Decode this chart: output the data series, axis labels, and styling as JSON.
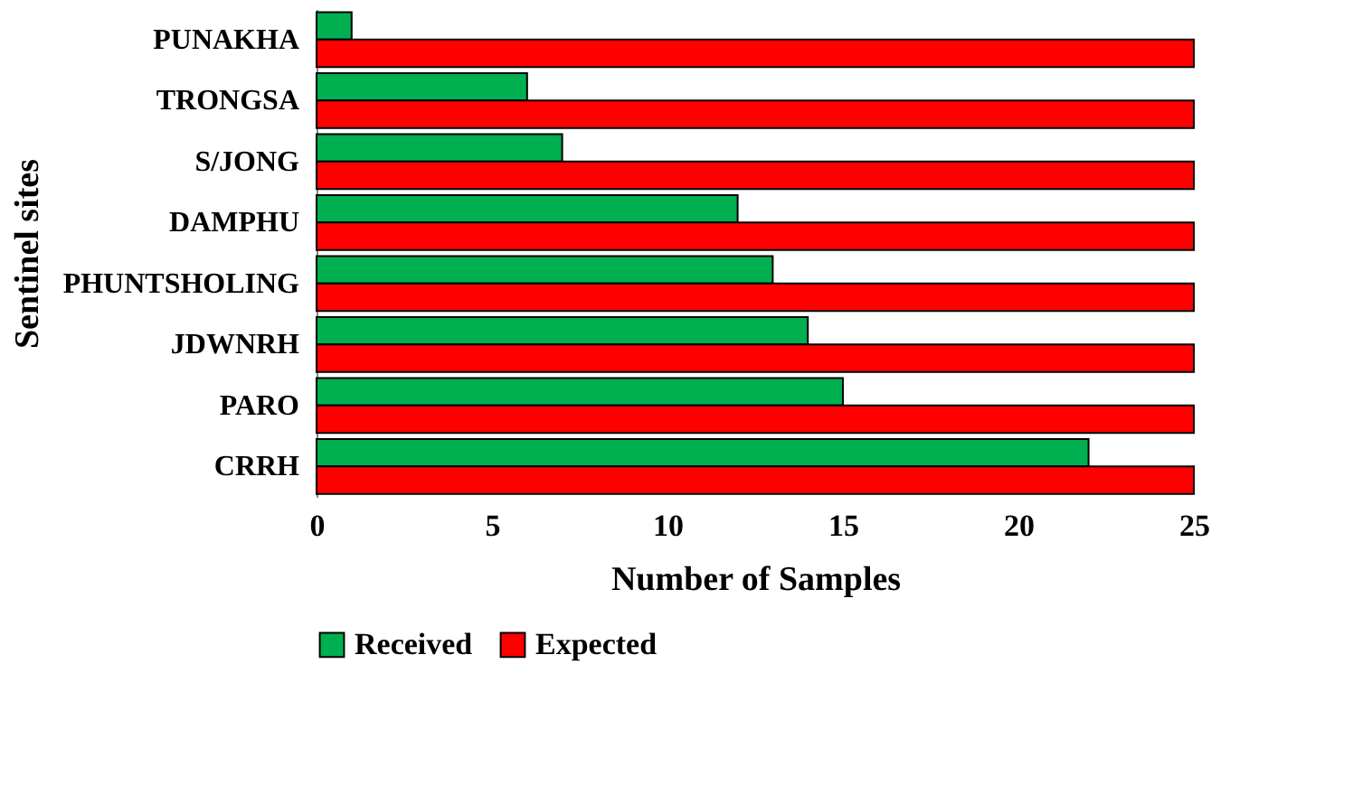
{
  "chart_data": {
    "type": "bar",
    "orientation": "horizontal",
    "xlabel": "Number of Samples",
    "ylabel": "Sentinel sites",
    "categories": [
      "PUNAKHA",
      "TRONGSA",
      "S/JONG",
      "DAMPHU",
      "PHUNTSHOLING",
      "JDWNRH",
      "PARO",
      "CRRH"
    ],
    "series": [
      {
        "name": "Received",
        "color": "#00b050",
        "values": [
          1,
          6,
          7,
          12,
          13,
          14,
          15,
          22
        ]
      },
      {
        "name": "Expected",
        "color": "#ff0000",
        "values": [
          25,
          25,
          25,
          25,
          25,
          25,
          25,
          25
        ]
      }
    ],
    "xlim": [
      0,
      25
    ],
    "xticks": [
      0,
      5,
      10,
      15,
      20,
      25
    ],
    "grid": false,
    "legend": "bottom"
  }
}
